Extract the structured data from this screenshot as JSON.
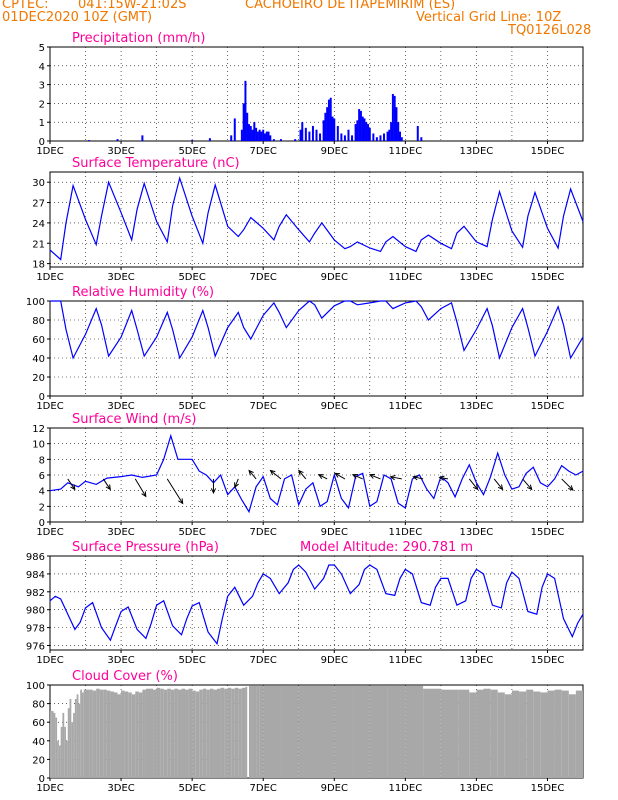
{
  "header": {
    "source": "CPTEC:",
    "coords": "041:15W-21:02S",
    "station": "CACHOEIRO DE ITAPEMIRIM (ES)",
    "run": "01DEC2020 10Z (GMT)",
    "grid_note": "Vertical Grid Line: 10Z",
    "model_code": "TQ0126L028"
  },
  "colors": {
    "header": "#f07800",
    "title": "#ff0099",
    "series": "#0000ff",
    "cloud": "#a8a8a8",
    "wind_arrow": "#000000"
  },
  "chart_data": [
    {
      "id": "precip",
      "type": "bar",
      "title": "Precipitation (mm/h)",
      "xlabel": "",
      "ylabel": "",
      "x_unit": "day of December 2020",
      "xlim": [
        1,
        16
      ],
      "ylim": [
        0,
        5
      ],
      "yticks": [
        0,
        1,
        2,
        3,
        4,
        5
      ],
      "xticks": [
        1,
        3,
        5,
        7,
        9,
        11,
        13,
        15
      ],
      "xtick_labels": [
        "1DEC",
        "3DEC",
        "5DEC",
        "7DEC",
        "9DEC",
        "11DEC",
        "13DEC",
        "15DEC"
      ],
      "grid": true,
      "x": [
        2.1,
        2.9,
        3.6,
        5.0,
        5.5,
        6.1,
        6.2,
        6.4,
        6.45,
        6.5,
        6.55,
        6.6,
        6.65,
        6.7,
        6.75,
        6.8,
        6.85,
        6.9,
        6.95,
        7.0,
        7.05,
        7.1,
        7.15,
        7.2,
        7.3,
        7.5,
        7.9,
        8.05,
        8.1,
        8.2,
        8.3,
        8.4,
        8.5,
        8.6,
        8.7,
        8.75,
        8.8,
        8.85,
        8.9,
        8.95,
        9.0,
        9.1,
        9.2,
        9.3,
        9.4,
        9.5,
        9.6,
        9.65,
        9.7,
        9.75,
        9.8,
        9.85,
        9.9,
        9.95,
        10.0,
        10.1,
        10.2,
        10.3,
        10.4,
        10.5,
        10.55,
        10.6,
        10.65,
        10.7,
        10.75,
        10.8,
        10.85,
        10.9,
        11.35,
        11.45
      ],
      "values": [
        0.05,
        0.1,
        0.3,
        0.05,
        0.15,
        0.3,
        1.2,
        0.6,
        2.0,
        3.2,
        1.5,
        0.9,
        0.8,
        0.6,
        1.0,
        0.7,
        0.5,
        0.6,
        0.5,
        0.6,
        0.4,
        0.5,
        0.5,
        0.3,
        0.1,
        0.1,
        0.1,
        0.6,
        1.0,
        0.7,
        0.5,
        0.8,
        0.6,
        0.4,
        1.1,
        1.5,
        1.8,
        2.2,
        2.3,
        1.3,
        1.2,
        0.8,
        0.4,
        0.3,
        0.6,
        0.3,
        0.9,
        1.1,
        1.7,
        1.6,
        1.3,
        1.2,
        1.0,
        0.9,
        0.7,
        0.4,
        0.2,
        0.3,
        0.4,
        0.5,
        0.6,
        1.0,
        2.5,
        2.4,
        1.8,
        1.0,
        0.5,
        0.2,
        0.8,
        0.2
      ]
    },
    {
      "id": "temp",
      "type": "line",
      "title": "Surface Temperature (nC)",
      "xlabel": "",
      "ylabel": "",
      "x_unit": "day of December 2020",
      "xlim": [
        1,
        16
      ],
      "ylim": [
        17.5,
        31.5
      ],
      "yticks": [
        18,
        21,
        24,
        27,
        30
      ],
      "xticks": [
        1,
        3,
        5,
        7,
        9,
        11,
        13,
        15
      ],
      "xtick_labels": [
        "1DEC",
        "3DEC",
        "5DEC",
        "7DEC",
        "9DEC",
        "11DEC",
        "13DEC",
        "15DEC"
      ],
      "grid": true,
      "series": [
        {
          "x": [
            1.0,
            1.3,
            1.45,
            1.65,
            2.0,
            2.3,
            2.45,
            2.65,
            3.0,
            3.3,
            3.45,
            3.65,
            4.0,
            4.3,
            4.45,
            4.65,
            5.0,
            5.3,
            5.45,
            5.65,
            6.0,
            6.3,
            6.45,
            6.65,
            7.0,
            7.3,
            7.45,
            7.65,
            8.0,
            8.3,
            8.45,
            8.65,
            9.0,
            9.3,
            9.45,
            9.65,
            10.0,
            10.3,
            10.45,
            10.65,
            11.0,
            11.3,
            11.45,
            11.65,
            12.0,
            12.3,
            12.45,
            12.65,
            13.0,
            13.3,
            13.45,
            13.65,
            14.0,
            14.3,
            14.45,
            14.65,
            15.0,
            15.3,
            15.45,
            15.65,
            16.0
          ],
          "values": [
            20,
            18.6,
            24,
            29.5,
            24.5,
            20.8,
            25,
            30,
            25.5,
            21.5,
            26,
            29.8,
            24.2,
            21.2,
            26.5,
            30.6,
            25,
            21,
            25.5,
            29.6,
            23.5,
            22,
            23,
            24.8,
            23.2,
            21.5,
            23.5,
            25.2,
            23,
            21.2,
            22.5,
            24,
            21.5,
            20.2,
            20.5,
            21.2,
            20.3,
            19.8,
            21.2,
            22,
            20.5,
            19.8,
            21.5,
            22.2,
            21,
            20.2,
            22.5,
            23.5,
            21.2,
            20.5,
            24.5,
            28.6,
            22.8,
            20.4,
            25,
            28.5,
            23.2,
            20.3,
            25,
            29,
            24.2
          ]
        }
      ]
    },
    {
      "id": "rh",
      "type": "line",
      "title": "Relative Humidity (%)",
      "xlabel": "",
      "ylabel": "",
      "x_unit": "day of December 2020",
      "xlim": [
        1,
        16
      ],
      "ylim": [
        0,
        100
      ],
      "yticks": [
        0,
        20,
        40,
        60,
        80,
        100
      ],
      "xticks": [
        1,
        3,
        5,
        7,
        9,
        11,
        13,
        15
      ],
      "xtick_labels": [
        "1DEC",
        "3DEC",
        "5DEC",
        "7DEC",
        "9DEC",
        "11DEC",
        "13DEC",
        "15DEC"
      ],
      "grid": true,
      "series": [
        {
          "x": [
            1.0,
            1.3,
            1.45,
            1.65,
            2.0,
            2.3,
            2.45,
            2.65,
            3.0,
            3.3,
            3.45,
            3.65,
            4.0,
            4.3,
            4.45,
            4.65,
            5.0,
            5.3,
            5.45,
            5.65,
            6.0,
            6.3,
            6.45,
            6.65,
            7.0,
            7.3,
            7.45,
            7.65,
            8.0,
            8.3,
            8.45,
            8.65,
            9.0,
            9.3,
            9.45,
            9.65,
            10.0,
            10.3,
            10.45,
            10.65,
            11.0,
            11.3,
            11.45,
            11.65,
            12.0,
            12.3,
            12.45,
            12.65,
            13.0,
            13.3,
            13.45,
            13.65,
            14.0,
            14.3,
            14.45,
            14.65,
            15.0,
            15.3,
            15.45,
            15.65,
            16.0
          ],
          "values": [
            100,
            100,
            70,
            40,
            65,
            92,
            75,
            42,
            62,
            90,
            70,
            42,
            62,
            88,
            70,
            40,
            62,
            90,
            72,
            42,
            72,
            88,
            72,
            60,
            85,
            98,
            88,
            72,
            90,
            100,
            96,
            82,
            95,
            100,
            100,
            96,
            98,
            100,
            100,
            92,
            98,
            100,
            94,
            80,
            92,
            98,
            78,
            48,
            70,
            92,
            74,
            40,
            72,
            92,
            72,
            42,
            68,
            94,
            75,
            40,
            62
          ]
        }
      ]
    },
    {
      "id": "wind",
      "type": "line",
      "title": "Surface Wind (m/s)",
      "xlabel": "",
      "ylabel": "",
      "x_unit": "day of December 2020",
      "xlim": [
        1,
        16
      ],
      "ylim": [
        0,
        12
      ],
      "yticks": [
        0,
        2,
        4,
        6,
        8,
        10,
        12
      ],
      "xticks": [
        1,
        3,
        5,
        7,
        9,
        11,
        13,
        15
      ],
      "xtick_labels": [
        "1DEC",
        "3DEC",
        "5DEC",
        "7DEC",
        "9DEC",
        "11DEC",
        "13DEC",
        "15DEC"
      ],
      "grid": true,
      "series": [
        {
          "x": [
            1.0,
            1.3,
            1.5,
            1.8,
            2.0,
            2.3,
            2.6,
            3.0,
            3.3,
            3.6,
            4.0,
            4.2,
            4.4,
            4.6,
            5.0,
            5.2,
            5.4,
            5.6,
            5.8,
            6.0,
            6.2,
            6.4,
            6.6,
            6.8,
            7.0,
            7.2,
            7.4,
            7.6,
            7.8,
            8.0,
            8.2,
            8.4,
            8.6,
            8.8,
            9.0,
            9.2,
            9.4,
            9.6,
            9.8,
            10.0,
            10.2,
            10.4,
            10.6,
            10.8,
            11.0,
            11.2,
            11.4,
            11.6,
            11.8,
            12.0,
            12.2,
            12.4,
            12.6,
            12.8,
            13.0,
            13.2,
            13.4,
            13.6,
            13.8,
            14.0,
            14.2,
            14.4,
            14.6,
            14.8,
            15.0,
            15.2,
            15.4,
            15.6,
            15.8,
            16.0
          ],
          "values": [
            4,
            4.2,
            5,
            4.5,
            5.2,
            4.8,
            5.6,
            5.8,
            6,
            5.7,
            6,
            8,
            11,
            8,
            8,
            6.5,
            6,
            5,
            6,
            3.5,
            4.5,
            2.8,
            1.3,
            4.5,
            5.8,
            3,
            2.2,
            5.5,
            6,
            2.2,
            4.2,
            5,
            2,
            2.6,
            6,
            3,
            1.8,
            5.8,
            6.2,
            2,
            2.6,
            6,
            5.5,
            2.4,
            1.8,
            5.5,
            6,
            4.2,
            3,
            5.8,
            5,
            3.2,
            5.5,
            7.3,
            5,
            3.5,
            5.8,
            8.8,
            6,
            4.2,
            4.5,
            6.2,
            7,
            5,
            4.5,
            5.5,
            7.2,
            6.5,
            6,
            6.5
          ]
        }
      ],
      "arrows": {
        "x": [
          1.5,
          2.5,
          3.4,
          4.3,
          5.6,
          6.3,
          6.8,
          7.5,
          8.2,
          8.8,
          9.3,
          9.8,
          10.3,
          10.9,
          11.5,
          12.2,
          12.8,
          13.5,
          14.3,
          15.4
        ],
        "u": [
          1,
          1,
          1.5,
          2.2,
          0,
          -0.5,
          -1,
          -1.5,
          -1,
          -1.2,
          -1.4,
          -1.4,
          -1.5,
          -1.6,
          -1.4,
          -1.2,
          1.2,
          1.2,
          1.3,
          1.6
        ],
        "v": [
          -1.5,
          -1.5,
          -2.5,
          -3.5,
          -2,
          -1.2,
          1.2,
          1.2,
          1.2,
          0.6,
          0.8,
          0.6,
          0.6,
          0.3,
          0.3,
          0.2,
          -1.5,
          -1.5,
          -1.5,
          -1.6
        ]
      }
    },
    {
      "id": "pres",
      "type": "line",
      "title": "Surface Pressure (hPa)",
      "subtitle": "Model Altitude: 290.781 m",
      "xlabel": "",
      "ylabel": "",
      "x_unit": "day of December 2020",
      "xlim": [
        1,
        16
      ],
      "ylim": [
        975.5,
        986
      ],
      "yticks": [
        976,
        978,
        980,
        982,
        984,
        986
      ],
      "xticks": [
        1,
        3,
        5,
        7,
        9,
        11,
        13,
        15
      ],
      "xtick_labels": [
        "1DEC",
        "3DEC",
        "5DEC",
        "7DEC",
        "9DEC",
        "11DEC",
        "13DEC",
        "15DEC"
      ],
      "grid": true,
      "series": [
        {
          "x": [
            1.0,
            1.15,
            1.3,
            1.5,
            1.7,
            1.85,
            2.0,
            2.2,
            2.45,
            2.7,
            2.85,
            3.0,
            3.2,
            3.45,
            3.7,
            3.85,
            4.0,
            4.2,
            4.45,
            4.7,
            4.85,
            5.0,
            5.2,
            5.45,
            5.7,
            5.85,
            6.0,
            6.2,
            6.45,
            6.7,
            6.85,
            7.0,
            7.2,
            7.45,
            7.7,
            7.85,
            8.0,
            8.2,
            8.45,
            8.7,
            8.85,
            9.0,
            9.2,
            9.45,
            9.7,
            9.85,
            10.0,
            10.2,
            10.45,
            10.7,
            10.85,
            11.0,
            11.2,
            11.45,
            11.7,
            11.85,
            12.0,
            12.2,
            12.45,
            12.7,
            12.85,
            13.0,
            13.2,
            13.45,
            13.7,
            13.85,
            14.0,
            14.2,
            14.45,
            14.7,
            14.85,
            15.0,
            15.2,
            15.45,
            15.7,
            15.85,
            16.0
          ],
          "values": [
            981,
            981.5,
            981.2,
            979.5,
            977.8,
            978.6,
            980.2,
            980.8,
            978,
            976.6,
            978.2,
            979.8,
            980.3,
            977.8,
            976.8,
            978.5,
            980.5,
            981,
            978.2,
            977.2,
            979,
            980.4,
            980.8,
            977.5,
            976.2,
            979,
            981.5,
            982.5,
            980.5,
            981.5,
            983,
            984,
            983.5,
            981.8,
            983,
            984.5,
            985,
            984.2,
            982.3,
            983.5,
            985,
            985,
            984,
            981.8,
            982.8,
            984.5,
            985,
            984.5,
            981.8,
            981.6,
            983.5,
            984.5,
            984,
            980.8,
            980.5,
            982.5,
            983.5,
            983.5,
            980.5,
            981,
            983.5,
            984.5,
            984,
            980.5,
            980.2,
            983,
            984.2,
            983.5,
            979.8,
            979.5,
            982.5,
            984,
            983.5,
            979,
            977,
            978.5,
            979.5
          ]
        }
      ]
    },
    {
      "id": "cloud",
      "type": "bar",
      "title": "Cloud Cover (%)",
      "xlabel": "",
      "ylabel": "",
      "x_unit": "day of December 2020",
      "xlim": [
        1,
        16
      ],
      "ylim": [
        0,
        100
      ],
      "yticks": [
        0,
        20,
        40,
        60,
        80,
        100
      ],
      "xticks": [
        1,
        3,
        5,
        7,
        9,
        11,
        13,
        15
      ],
      "xtick_labels": [
        "1DEC",
        "3DEC",
        "5DEC",
        "7DEC",
        "9DEC",
        "11DEC",
        "13DEC",
        "15DEC"
      ],
      "grid": true,
      "x": [
        1.0,
        1.05,
        1.1,
        1.15,
        1.2,
        1.25,
        1.3,
        1.35,
        1.4,
        1.45,
        1.5,
        1.55,
        1.6,
        1.65,
        1.7,
        1.75,
        1.8,
        1.85,
        1.9,
        1.95,
        2.0,
        2.1,
        2.2,
        2.3,
        2.4,
        2.5,
        2.6,
        2.7,
        2.8,
        2.9,
        3.0,
        3.1,
        3.2,
        3.3,
        3.4,
        3.5,
        3.6,
        3.7,
        3.8,
        3.9,
        4.0,
        4.1,
        4.2,
        4.3,
        4.4,
        4.5,
        4.6,
        4.7,
        4.8,
        4.9,
        5.0,
        5.1,
        5.2,
        5.3,
        5.4,
        5.5,
        5.6,
        5.7,
        5.8,
        5.9,
        6.0,
        6.1,
        6.2,
        6.3,
        6.4,
        6.5,
        6.55,
        6.6,
        6.7,
        6.8,
        6.9,
        7.0,
        7.5,
        8.0,
        8.5,
        9.0,
        9.5,
        10.0,
        10.5,
        11.0,
        11.5,
        12.0,
        12.5,
        12.8,
        13.0,
        13.2,
        13.4,
        13.6,
        13.8,
        14.0,
        14.2,
        14.4,
        14.6,
        14.8,
        15.0,
        15.2,
        15.4,
        15.6,
        15.8
      ],
      "values": [
        72,
        72,
        70,
        65,
        40,
        35,
        55,
        70,
        55,
        40,
        75,
        85,
        60,
        70,
        85,
        90,
        80,
        95,
        92,
        95,
        95,
        95,
        94,
        96,
        95,
        95,
        94,
        93,
        92,
        90,
        94,
        93,
        92,
        90,
        93,
        92,
        95,
        96,
        96,
        95,
        97,
        96,
        95,
        96,
        95,
        96,
        95,
        96,
        95,
        96,
        94,
        93,
        95,
        96,
        95,
        96,
        95,
        96,
        97,
        96,
        97,
        96,
        97,
        96,
        97,
        98,
        0,
        99,
        99,
        99,
        99,
        99,
        99,
        99,
        99,
        99,
        99,
        99,
        99,
        99,
        96,
        95,
        95,
        92,
        95,
        96,
        95,
        92,
        90,
        94,
        93,
        95,
        93,
        92,
        94,
        95,
        94,
        90,
        94
      ]
    }
  ]
}
